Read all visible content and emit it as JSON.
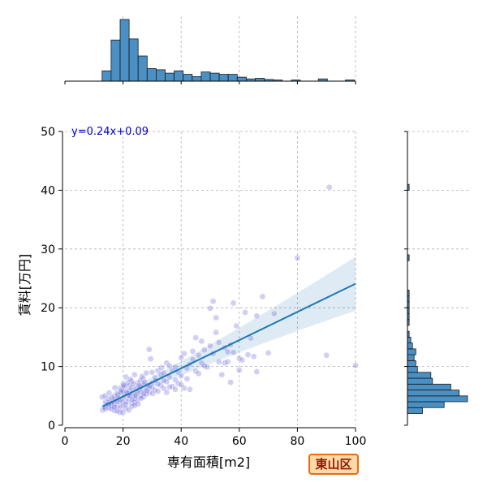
{
  "chart_data": {
    "type": "scatter",
    "title": "",
    "xlabel": "専有面積[m2]",
    "ylabel": "賃料[万円]",
    "xlim": [
      0,
      100
    ],
    "ylim": [
      0,
      50
    ],
    "x_ticks": [
      0,
      20,
      40,
      60,
      80,
      100
    ],
    "y_ticks": [
      0,
      10,
      20,
      30,
      40,
      50
    ],
    "grid": true,
    "regression": {
      "label": "y=0.24x+0.09",
      "slope": 0.24,
      "intercept": 0.09,
      "x_range": [
        13,
        100
      ],
      "ci_start": 0.6,
      "ci_end": 4.6
    },
    "area_badge": "東山区",
    "points": [
      [
        13,
        2.6
      ],
      [
        13.5,
        3.1
      ],
      [
        14,
        2.8
      ],
      [
        14.5,
        3.5
      ],
      [
        15,
        3.0
      ],
      [
        15.5,
        3.9
      ],
      [
        16,
        3.3
      ],
      [
        16.5,
        4.1
      ],
      [
        17,
        3.6
      ],
      [
        17.5,
        4.4
      ],
      [
        18,
        3.2
      ],
      [
        18.5,
        4.6
      ],
      [
        19,
        3.9
      ],
      [
        19.5,
        4.2
      ],
      [
        20,
        3.4
      ],
      [
        20.5,
        4.9
      ],
      [
        21,
        4.0
      ],
      [
        21.5,
        5.3
      ],
      [
        22,
        4.4
      ],
      [
        22.5,
        5.0
      ],
      [
        23,
        3.8
      ],
      [
        23.5,
        5.6
      ],
      [
        24,
        4.6
      ],
      [
        24.5,
        5.2
      ],
      [
        25,
        4.3
      ],
      [
        25.5,
        6.0
      ],
      [
        26,
        5.0
      ],
      [
        26.5,
        5.7
      ],
      [
        27,
        4.8
      ],
      [
        28,
        6.2
      ],
      [
        29,
        5.6
      ],
      [
        30,
        6.4
      ],
      [
        31,
        6.0
      ],
      [
        32,
        5.8
      ],
      [
        33,
        6.8
      ],
      [
        34,
        6.3
      ],
      [
        35,
        7.4
      ],
      [
        36,
        8.2
      ],
      [
        37,
        6.6
      ],
      [
        38,
        7.7
      ],
      [
        39,
        9.0
      ],
      [
        40,
        8.4
      ],
      [
        41,
        6.3
      ],
      [
        42,
        9.7
      ],
      [
        43,
        10.4
      ],
      [
        44,
        11.2
      ],
      [
        45,
        9.2
      ],
      [
        46,
        11.9
      ],
      [
        47,
        10.6
      ],
      [
        48,
        12.8
      ],
      [
        49,
        9.9
      ],
      [
        50,
        13.5
      ],
      [
        51,
        12.2
      ],
      [
        52,
        15.8
      ],
      [
        53,
        14.1
      ],
      [
        54,
        8.6
      ],
      [
        55,
        13.2
      ],
      [
        56,
        12.5
      ],
      [
        57,
        7.3
      ],
      [
        58,
        20.8
      ],
      [
        59,
        16.9
      ],
      [
        60,
        11.4
      ],
      [
        62,
        19.2
      ],
      [
        64,
        14.8
      ],
      [
        65,
        11.7
      ],
      [
        66,
        18.6
      ],
      [
        68,
        21.9
      ],
      [
        70,
        12.3
      ],
      [
        72,
        19.0
      ],
      [
        80,
        28.5
      ],
      [
        90,
        11.9
      ],
      [
        91,
        40.5
      ],
      [
        100,
        10.2
      ],
      [
        17,
        2.5
      ],
      [
        18,
        5.5
      ],
      [
        19,
        6.3
      ],
      [
        20,
        7.0
      ],
      [
        21,
        8.2
      ],
      [
        22,
        6.7
      ],
      [
        23,
        7.5
      ],
      [
        24,
        8.6
      ],
      [
        25,
        7.2
      ],
      [
        26,
        6.5
      ],
      [
        27,
        7.9
      ],
      [
        28,
        8.9
      ],
      [
        29,
        12.9
      ],
      [
        29.5,
        11.3
      ],
      [
        30,
        9.0
      ],
      [
        31,
        8.1
      ],
      [
        32,
        9.3
      ],
      [
        33,
        8.6
      ],
      [
        34,
        7.6
      ],
      [
        35,
        10.6
      ],
      [
        36,
        10.1
      ],
      [
        37,
        9.3
      ],
      [
        38,
        9.9
      ],
      [
        40,
        11.5
      ],
      [
        41,
        12.2
      ],
      [
        43,
        6.1
      ],
      [
        45,
        14.9
      ],
      [
        47,
        14.3
      ],
      [
        50,
        19.9
      ],
      [
        51,
        21.1
      ],
      [
        52,
        18.3
      ],
      [
        55,
        10.6
      ],
      [
        56,
        10.8
      ],
      [
        58,
        12.4
      ],
      [
        60,
        9.4
      ],
      [
        63,
        12.0
      ],
      [
        66,
        9.1
      ],
      [
        14,
        4.0
      ],
      [
        15,
        4.5
      ],
      [
        16,
        2.8
      ],
      [
        17,
        5.0
      ],
      [
        18,
        4.0
      ],
      [
        19,
        3.0
      ],
      [
        20,
        5.8
      ],
      [
        21,
        3.6
      ],
      [
        22,
        5.9
      ],
      [
        23,
        6.4
      ],
      [
        24,
        3.9
      ],
      [
        25,
        5.6
      ],
      [
        26,
        7.6
      ],
      [
        27,
        6.9
      ],
      [
        28,
        5.3
      ],
      [
        30,
        7.2
      ],
      [
        32,
        7.0
      ],
      [
        34,
        8.9
      ],
      [
        35,
        5.6
      ],
      [
        36,
        6.5
      ],
      [
        38,
        6.1
      ],
      [
        39,
        7.1
      ],
      [
        40,
        6.9
      ],
      [
        42,
        7.9
      ],
      [
        44,
        12.6
      ],
      [
        46,
        8.8
      ],
      [
        48,
        10.1
      ],
      [
        53,
        10.8
      ],
      [
        57,
        13.7
      ],
      [
        61,
        11.1
      ],
      [
        19.5,
        6.0
      ],
      [
        20.5,
        6.5
      ],
      [
        21.5,
        7.2
      ],
      [
        22.5,
        7.8
      ],
      [
        23.5,
        7.0
      ],
      [
        24.5,
        6.2
      ],
      [
        25.5,
        6.8
      ],
      [
        26.5,
        8.3
      ],
      [
        27.5,
        7.3
      ],
      [
        28.5,
        6.8
      ],
      [
        12.8,
        4.8
      ],
      [
        13.8,
        5.0
      ],
      [
        15.2,
        5.5
      ],
      [
        16.2,
        4.7
      ],
      [
        17.2,
        6.4
      ],
      [
        18.2,
        5.2
      ],
      [
        19.2,
        5.6
      ],
      [
        20.2,
        6.8
      ],
      [
        21.2,
        5.6
      ],
      [
        22.2,
        5.1
      ],
      [
        23.2,
        4.4
      ],
      [
        24.2,
        5.0
      ],
      [
        25.2,
        3.6
      ],
      [
        26.2,
        4.6
      ],
      [
        27.2,
        5.4
      ],
      [
        28.2,
        5.9
      ],
      [
        29.2,
        6.6
      ],
      [
        30.2,
        5.4
      ],
      [
        31.2,
        7.6
      ],
      [
        33.2,
        9.8
      ],
      [
        20,
        2.2
      ],
      [
        21,
        2.9
      ],
      [
        22,
        2.6
      ],
      [
        23,
        3.2
      ],
      [
        24,
        3.4
      ],
      [
        19,
        2.2
      ],
      [
        18,
        2.4
      ],
      [
        17,
        3.1
      ],
      [
        16,
        3.8
      ],
      [
        15,
        3.6
      ]
    ],
    "x_histogram": {
      "bin_width": 3.1,
      "bins": [
        [
          12.8,
          0.09
        ],
        [
          15.9,
          0.36
        ],
        [
          19.0,
          0.54
        ],
        [
          22.1,
          0.37
        ],
        [
          25.2,
          0.22
        ],
        [
          28.3,
          0.11
        ],
        [
          31.4,
          0.1
        ],
        [
          34.5,
          0.07
        ],
        [
          37.6,
          0.09
        ],
        [
          40.7,
          0.06
        ],
        [
          43.8,
          0.04
        ],
        [
          46.9,
          0.08
        ],
        [
          50.0,
          0.07
        ],
        [
          53.1,
          0.06
        ],
        [
          56.2,
          0.06
        ],
        [
          59.3,
          0.035
        ],
        [
          62.4,
          0.02
        ],
        [
          65.5,
          0.025
        ],
        [
          68.6,
          0.015
        ],
        [
          71.7,
          0.01
        ],
        [
          77.9,
          0.01
        ],
        [
          87.2,
          0.02
        ],
        [
          96.5,
          0.01
        ]
      ]
    },
    "y_histogram": {
      "bin_width": 1.0,
      "bins": [
        [
          2,
          0.09
        ],
        [
          3,
          0.22
        ],
        [
          4,
          0.36
        ],
        [
          5,
          0.31
        ],
        [
          6,
          0.26
        ],
        [
          7,
          0.15
        ],
        [
          8,
          0.14
        ],
        [
          9,
          0.06
        ],
        [
          10,
          0.05
        ],
        [
          11,
          0.04
        ],
        [
          12,
          0.05
        ],
        [
          13,
          0.03
        ],
        [
          14,
          0.02
        ],
        [
          15,
          0.01
        ],
        [
          17,
          0.01
        ],
        [
          18,
          0.01
        ],
        [
          19,
          0.01
        ],
        [
          20,
          0.01
        ],
        [
          21,
          0.01
        ],
        [
          22,
          0.01
        ],
        [
          28,
          0.01
        ],
        [
          40,
          0.01
        ]
      ]
    }
  }
}
